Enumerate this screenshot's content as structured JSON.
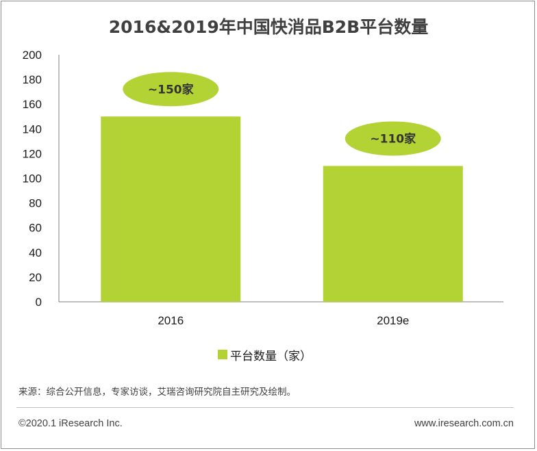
{
  "chart_data": {
    "type": "bar",
    "title": "2016&2019年中国快消品B2B平台数量",
    "categories": [
      "2016",
      "2019e"
    ],
    "series": [
      {
        "name": "平台数量（家）",
        "values": [
          150,
          110
        ],
        "color": "#b3d334"
      }
    ],
    "data_labels": [
      "~150家",
      "~110家"
    ],
    "yticks": [
      "0",
      "20",
      "40",
      "60",
      "80",
      "100",
      "120",
      "140",
      "160",
      "180",
      "200"
    ],
    "ylim": [
      0,
      200
    ],
    "grid": false,
    "legend": "bottom",
    "label_color": "#b3d334"
  },
  "footer": {
    "source": "来源：综合公开信息，专家访谈，艾瑞咨询研究院自主研究及绘制。",
    "copyright": "©2020.1 iResearch Inc.",
    "site": "www.iresearch.com.cn"
  }
}
